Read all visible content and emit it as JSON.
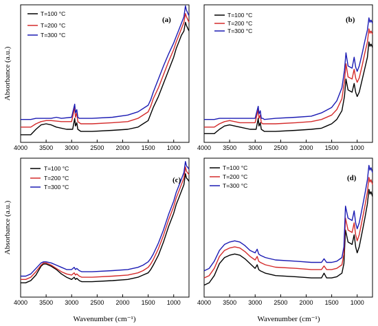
{
  "figure": {
    "ylabel": "Absorbance (a.u.)",
    "xlabel": "Wavenumber (cm⁻¹)"
  },
  "series_colors": {
    "T=100 °C": "#000000",
    "T=200 °C": "#d42a2a",
    "T=300 °C": "#1a1ab3"
  },
  "chart_data": [
    {
      "panel": "(a)",
      "type": "line",
      "xlim": [
        4000,
        700
      ],
      "xticks": [
        4000,
        3500,
        3000,
        2500,
        2000,
        1500,
        1000
      ],
      "xlabel": "",
      "ylabel": "Absorbance (a.u.)",
      "legend": "top-left",
      "series": [
        {
          "name": "T=100 °C",
          "x": [
            4000,
            3800,
            3700,
            3600,
            3500,
            3400,
            3300,
            3100,
            2980,
            2940,
            2925,
            2900,
            2880,
            2850,
            2820,
            2600,
            2200,
            1900,
            1700,
            1600,
            1500,
            1450,
            1400,
            1300,
            1200,
            1100,
            1000,
            950,
            900,
            850,
            800,
            770,
            750,
            730,
            720,
            700
          ],
          "y": [
            0.05,
            0.05,
            0.1,
            0.14,
            0.15,
            0.14,
            0.12,
            0.1,
            0.1,
            0.2,
            0.13,
            0.16,
            0.1,
            0.09,
            0.08,
            0.08,
            0.09,
            0.1,
            0.12,
            0.15,
            0.18,
            0.24,
            0.3,
            0.4,
            0.52,
            0.64,
            0.76,
            0.84,
            0.9,
            0.96,
            1.0,
            1.08,
            1.05,
            1.03,
            1.02,
            1.0
          ]
        },
        {
          "name": "T=200 °C",
          "x": [
            4000,
            3800,
            3700,
            3600,
            3500,
            3400,
            3200,
            3000,
            2940,
            2925,
            2900,
            2880,
            2850,
            2820,
            2600,
            2200,
            1900,
            1700,
            1500,
            1450,
            1400,
            1300,
            1200,
            1100,
            1000,
            950,
            900,
            850,
            800,
            770,
            750,
            730,
            720,
            700
          ],
          "y": [
            0.12,
            0.12,
            0.15,
            0.17,
            0.18,
            0.18,
            0.17,
            0.17,
            0.3,
            0.21,
            0.25,
            0.17,
            0.16,
            0.15,
            0.15,
            0.16,
            0.17,
            0.2,
            0.26,
            0.31,
            0.38,
            0.48,
            0.6,
            0.72,
            0.83,
            0.9,
            0.96,
            1.02,
            1.08,
            1.16,
            1.13,
            1.11,
            1.1,
            1.08
          ]
        },
        {
          "name": "T=300 °C",
          "x": [
            4000,
            3800,
            3700,
            3500,
            3400,
            3300,
            3200,
            3000,
            2940,
            2925,
            2900,
            2880,
            2850,
            2820,
            2600,
            2200,
            1900,
            1700,
            1500,
            1450,
            1400,
            1300,
            1200,
            1100,
            1000,
            950,
            900,
            850,
            800,
            770,
            750,
            730,
            720,
            700
          ],
          "y": [
            0.19,
            0.19,
            0.2,
            0.2,
            0.2,
            0.21,
            0.2,
            0.21,
            0.33,
            0.25,
            0.28,
            0.21,
            0.2,
            0.2,
            0.2,
            0.21,
            0.23,
            0.26,
            0.32,
            0.37,
            0.44,
            0.56,
            0.68,
            0.79,
            0.89,
            0.95,
            1.01,
            1.07,
            1.13,
            1.23,
            1.19,
            1.17,
            1.16,
            1.14
          ]
        }
      ]
    },
    {
      "panel": "(b)",
      "type": "line",
      "xlim": [
        4000,
        700
      ],
      "xticks": [
        4000,
        3500,
        3000,
        2500,
        2000,
        1500,
        1000
      ],
      "xlabel": "",
      "ylabel": "",
      "legend": "top-left",
      "series": [
        {
          "name": "T=100 °C",
          "x": [
            4000,
            3800,
            3700,
            3600,
            3500,
            3400,
            3300,
            3100,
            2980,
            2940,
            2925,
            2900,
            2880,
            2850,
            2820,
            2600,
            2200,
            1900,
            1700,
            1600,
            1500,
            1400,
            1300,
            1250,
            1220,
            1180,
            1100,
            1060,
            1030,
            1000,
            960,
            900,
            850,
            800,
            770,
            750,
            730,
            700
          ],
          "y": [
            0.06,
            0.06,
            0.1,
            0.13,
            0.14,
            0.13,
            0.12,
            0.1,
            0.1,
            0.2,
            0.13,
            0.16,
            0.1,
            0.09,
            0.08,
            0.08,
            0.09,
            0.1,
            0.11,
            0.13,
            0.15,
            0.19,
            0.27,
            0.4,
            0.56,
            0.46,
            0.44,
            0.52,
            0.44,
            0.4,
            0.44,
            0.56,
            0.66,
            0.76,
            0.9,
            0.86,
            0.88,
            0.85
          ]
        },
        {
          "name": "T=200 °C",
          "x": [
            4000,
            3800,
            3700,
            3600,
            3500,
            3400,
            3300,
            3000,
            2940,
            2925,
            2900,
            2880,
            2850,
            2820,
            2600,
            2200,
            1900,
            1700,
            1500,
            1400,
            1300,
            1250,
            1220,
            1180,
            1100,
            1060,
            1030,
            1000,
            960,
            900,
            850,
            800,
            770,
            750,
            730,
            700
          ],
          "y": [
            0.12,
            0.12,
            0.15,
            0.17,
            0.18,
            0.17,
            0.16,
            0.16,
            0.28,
            0.2,
            0.23,
            0.16,
            0.15,
            0.15,
            0.15,
            0.16,
            0.17,
            0.19,
            0.23,
            0.28,
            0.38,
            0.54,
            0.7,
            0.58,
            0.56,
            0.65,
            0.57,
            0.53,
            0.57,
            0.69,
            0.8,
            0.9,
            1.02,
            0.98,
            1.0,
            0.97
          ]
        },
        {
          "name": "T=300 °C",
          "x": [
            4000,
            3800,
            3700,
            3500,
            3400,
            3300,
            3200,
            3000,
            2940,
            2925,
            2900,
            2880,
            2850,
            2820,
            2600,
            2200,
            1900,
            1700,
            1500,
            1400,
            1300,
            1250,
            1220,
            1180,
            1100,
            1060,
            1030,
            1000,
            960,
            900,
            850,
            800,
            770,
            750,
            730,
            700
          ],
          "y": [
            0.19,
            0.19,
            0.2,
            0.2,
            0.2,
            0.2,
            0.2,
            0.2,
            0.31,
            0.24,
            0.27,
            0.2,
            0.2,
            0.19,
            0.2,
            0.21,
            0.22,
            0.25,
            0.3,
            0.36,
            0.48,
            0.64,
            0.8,
            0.68,
            0.66,
            0.76,
            0.67,
            0.63,
            0.68,
            0.8,
            0.91,
            1.01,
            1.12,
            1.08,
            1.1,
            1.07
          ]
        }
      ]
    },
    {
      "panel": "(c)",
      "type": "line",
      "xlim": [
        4000,
        700
      ],
      "xticks": [
        4000,
        3500,
        3000,
        2500,
        2000,
        1500,
        1000
      ],
      "xlabel": "Wavenumber (cm⁻¹)",
      "ylabel": "Absorbance (a.u.)",
      "legend": "top-left",
      "series": [
        {
          "name": "T=100 °C",
          "x": [
            4000,
            3900,
            3800,
            3700,
            3600,
            3550,
            3500,
            3400,
            3300,
            3200,
            3100,
            3000,
            2950,
            2925,
            2900,
            2850,
            2800,
            2600,
            2200,
            1900,
            1700,
            1600,
            1500,
            1450,
            1400,
            1300,
            1200,
            1100,
            1000,
            950,
            900,
            850,
            800,
            770,
            750,
            730,
            700
          ],
          "y": [
            0.03,
            0.03,
            0.05,
            0.1,
            0.18,
            0.2,
            0.2,
            0.18,
            0.15,
            0.11,
            0.08,
            0.06,
            0.08,
            0.06,
            0.07,
            0.05,
            0.04,
            0.04,
            0.05,
            0.06,
            0.08,
            0.1,
            0.12,
            0.15,
            0.19,
            0.28,
            0.4,
            0.54,
            0.66,
            0.74,
            0.8,
            0.86,
            0.92,
            1.02,
            0.98,
            0.97,
            0.95
          ]
        },
        {
          "name": "T=200 °C",
          "x": [
            4000,
            3900,
            3800,
            3700,
            3600,
            3550,
            3500,
            3400,
            3300,
            3200,
            3100,
            3000,
            2950,
            2925,
            2900,
            2850,
            2800,
            2600,
            2200,
            1900,
            1700,
            1600,
            1500,
            1450,
            1400,
            1300,
            1200,
            1100,
            1000,
            950,
            900,
            850,
            800,
            770,
            750,
            730,
            700
          ],
          "y": [
            0.06,
            0.06,
            0.08,
            0.13,
            0.19,
            0.21,
            0.21,
            0.19,
            0.16,
            0.13,
            0.11,
            0.1,
            0.12,
            0.1,
            0.11,
            0.09,
            0.08,
            0.08,
            0.09,
            0.1,
            0.12,
            0.14,
            0.17,
            0.2,
            0.24,
            0.34,
            0.46,
            0.6,
            0.72,
            0.8,
            0.86,
            0.92,
            0.98,
            1.08,
            1.04,
            1.03,
            1.01
          ]
        },
        {
          "name": "T=300 °C",
          "x": [
            4000,
            3900,
            3800,
            3700,
            3600,
            3550,
            3500,
            3400,
            3300,
            3200,
            3100,
            3000,
            2950,
            2925,
            2900,
            2850,
            2800,
            2600,
            2200,
            1900,
            1700,
            1600,
            1500,
            1450,
            1400,
            1300,
            1200,
            1100,
            1000,
            950,
            900,
            850,
            800,
            770,
            750,
            730,
            700
          ],
          "y": [
            0.09,
            0.09,
            0.11,
            0.16,
            0.21,
            0.22,
            0.22,
            0.21,
            0.19,
            0.17,
            0.15,
            0.15,
            0.17,
            0.15,
            0.16,
            0.14,
            0.13,
            0.13,
            0.14,
            0.15,
            0.17,
            0.19,
            0.22,
            0.25,
            0.29,
            0.39,
            0.51,
            0.65,
            0.77,
            0.85,
            0.91,
            0.97,
            1.03,
            1.13,
            1.09,
            1.08,
            1.06
          ]
        }
      ]
    },
    {
      "panel": "(d)",
      "type": "line",
      "xlim": [
        4000,
        700
      ],
      "xticks": [
        4000,
        3500,
        3000,
        2500,
        2000,
        1500,
        1000
      ],
      "xlabel": "Wavenumber (cm⁻¹)",
      "ylabel": "",
      "legend": "top-left",
      "series": [
        {
          "name": "T=100 °C",
          "x": [
            4000,
            3900,
            3800,
            3700,
            3600,
            3500,
            3400,
            3300,
            3200,
            3100,
            3000,
            2960,
            2930,
            2900,
            2800,
            2600,
            2200,
            1900,
            1700,
            1650,
            1600,
            1500,
            1400,
            1300,
            1260,
            1230,
            1180,
            1100,
            1060,
            1030,
            1000,
            960,
            900,
            850,
            800,
            770,
            750,
            730,
            700
          ],
          "y": [
            0.04,
            0.06,
            0.12,
            0.22,
            0.27,
            0.29,
            0.3,
            0.29,
            0.26,
            0.22,
            0.18,
            0.21,
            0.17,
            0.16,
            0.14,
            0.12,
            0.11,
            0.1,
            0.1,
            0.14,
            0.1,
            0.1,
            0.11,
            0.14,
            0.22,
            0.5,
            0.4,
            0.38,
            0.46,
            0.36,
            0.31,
            0.36,
            0.49,
            0.6,
            0.72,
            0.84,
            0.8,
            0.82,
            0.78
          ]
        },
        {
          "name": "T=200 °C",
          "x": [
            4000,
            3900,
            3800,
            3700,
            3600,
            3500,
            3400,
            3300,
            3200,
            3100,
            3000,
            2960,
            2930,
            2900,
            2800,
            2600,
            2200,
            1900,
            1700,
            1650,
            1600,
            1500,
            1400,
            1300,
            1260,
            1230,
            1180,
            1100,
            1060,
            1030,
            1000,
            960,
            900,
            850,
            800,
            770,
            750,
            730,
            700
          ],
          "y": [
            0.1,
            0.12,
            0.18,
            0.28,
            0.33,
            0.35,
            0.36,
            0.35,
            0.32,
            0.28,
            0.25,
            0.28,
            0.24,
            0.23,
            0.21,
            0.19,
            0.18,
            0.17,
            0.17,
            0.2,
            0.17,
            0.17,
            0.18,
            0.21,
            0.3,
            0.6,
            0.5,
            0.48,
            0.56,
            0.46,
            0.41,
            0.46,
            0.59,
            0.7,
            0.82,
            0.94,
            0.9,
            0.92,
            0.88
          ]
        },
        {
          "name": "T=300 °C",
          "x": [
            4000,
            3900,
            3800,
            3700,
            3600,
            3500,
            3400,
            3300,
            3200,
            3100,
            3000,
            2960,
            2930,
            2900,
            2800,
            2600,
            2200,
            1900,
            1700,
            1650,
            1600,
            1500,
            1400,
            1300,
            1260,
            1230,
            1180,
            1100,
            1060,
            1030,
            1000,
            960,
            900,
            850,
            800,
            770,
            750,
            730,
            700
          ],
          "y": [
            0.16,
            0.18,
            0.24,
            0.33,
            0.38,
            0.4,
            0.41,
            0.4,
            0.37,
            0.33,
            0.31,
            0.34,
            0.3,
            0.29,
            0.27,
            0.25,
            0.24,
            0.23,
            0.23,
            0.26,
            0.23,
            0.23,
            0.24,
            0.27,
            0.36,
            0.7,
            0.6,
            0.58,
            0.66,
            0.56,
            0.51,
            0.56,
            0.69,
            0.8,
            0.92,
            1.04,
            1.0,
            1.02,
            0.98
          ]
        }
      ]
    }
  ]
}
